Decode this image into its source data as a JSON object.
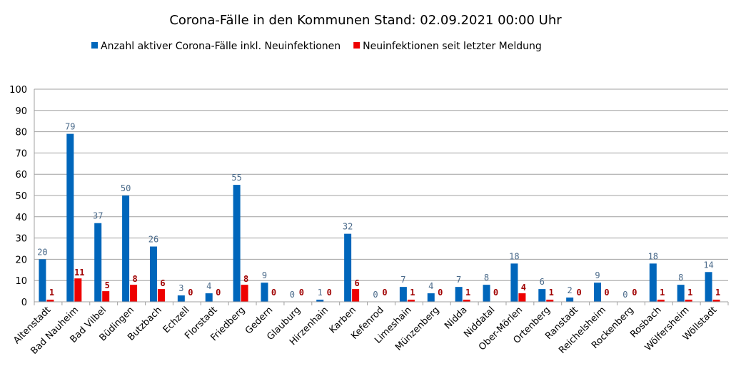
{
  "chart_data": {
    "type": "bar",
    "title": "Corona-Fälle in den Kommunen Stand: 02.09.2021 00:00 Uhr",
    "xlabel": "",
    "ylabel": "",
    "ylim": [
      0,
      100
    ],
    "yticks": [
      "0",
      "10",
      "20",
      "30",
      "40",
      "50",
      "60",
      "70",
      "80",
      "90",
      "100"
    ],
    "grid": true,
    "legend_position": "top-center",
    "categories": [
      "Altenstadt",
      "Bad Nauheim",
      "Bad Vilbel",
      "Büdingen",
      "Butzbach",
      "Echzell",
      "Florstadt",
      "Friedberg",
      "Gedern",
      "Glauburg",
      "Hirzenhain",
      "Karben",
      "Kefenrod",
      "Limeshain",
      "Münzenberg",
      "Nidda",
      "Niddatal",
      "Ober-Mörlen",
      "Ortenberg",
      "Ranstadt",
      "Reichelsheim",
      "Rockenberg",
      "Rosbach",
      "Wölfersheim",
      "Wöllstadt"
    ],
    "series": [
      {
        "name": "Anzahl aktiver Corona-Fälle inkl. Neuinfektionen",
        "color": "#0066bb",
        "values": [
          20,
          79,
          37,
          50,
          26,
          3,
          4,
          55,
          9,
          0,
          1,
          32,
          0,
          7,
          4,
          7,
          8,
          18,
          6,
          2,
          9,
          0,
          18,
          8,
          14
        ]
      },
      {
        "name": "Neuinfektionen seit letzter Meldung",
        "color": "#ee0000",
        "values": [
          1,
          11,
          5,
          8,
          6,
          0,
          0,
          8,
          0,
          0,
          0,
          6,
          0,
          1,
          0,
          1,
          0,
          4,
          1,
          0,
          0,
          0,
          1,
          1,
          1
        ]
      }
    ]
  }
}
